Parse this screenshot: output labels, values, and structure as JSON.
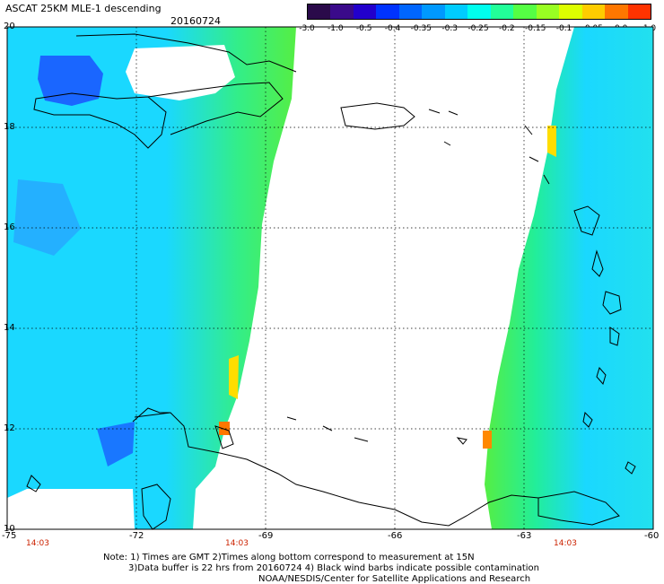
{
  "header": {
    "title": "ASCAT 25KM MLE-1 descending",
    "date": "20160724"
  },
  "colorbar": {
    "colors": [
      "#2a0a4a",
      "#3a0a8a",
      "#2200cc",
      "#0033ff",
      "#0066ff",
      "#0099ff",
      "#00ccff",
      "#00ffee",
      "#22ff99",
      "#55ff44",
      "#99ff22",
      "#ddff00",
      "#ffcc00",
      "#ff7700",
      "#ff3300"
    ],
    "labels": [
      "-3.0",
      "-1.0",
      "-0.5",
      "-0.4",
      "-0.35",
      "-0.3",
      "-0.25",
      "-0.2",
      "-0.15",
      "-0.1",
      "-0.05",
      "0.0",
      "1.0"
    ]
  },
  "map": {
    "lat_labels": [
      "20",
      "18",
      "16",
      "14",
      "12",
      "10"
    ],
    "lon_labels": [
      "-75",
      "-72",
      "-69",
      "-66",
      "-63",
      "-60"
    ],
    "time_labels": [
      "14:03",
      "14:03",
      "14:03"
    ],
    "colors": {
      "swath_cyan": "#1ad8ff",
      "swath_green": "#33ee66",
      "swath_blue": "#1a66ff",
      "swath_yellow": "#ffdd00",
      "swath_orange": "#ff8800",
      "coast": "#000000"
    }
  },
  "notes": [
    "Note: 1) Times are GMT 2)Times along bottom correspond to measurement at 15N",
    "3)Data buffer is 22 hrs from 20160724 4) Black wind barbs indicate possible contamination",
    "NOAA/NESDIS/Center for Satellite Applications and Research"
  ]
}
